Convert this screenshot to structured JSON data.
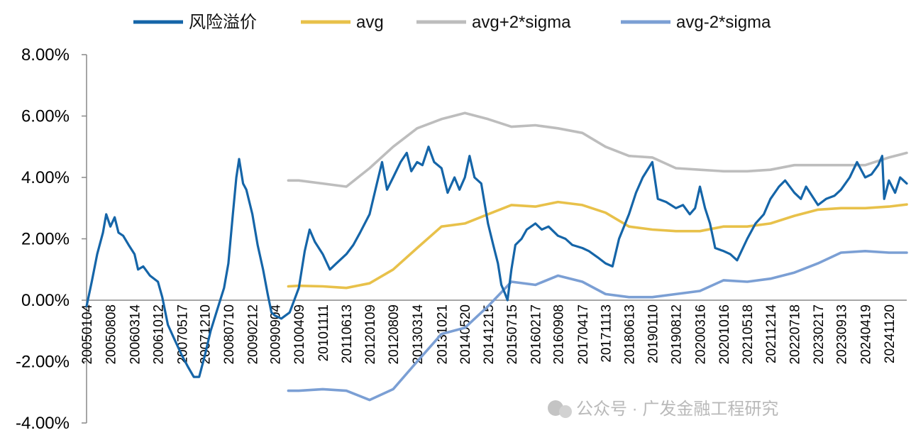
{
  "chart_data": {
    "type": "line",
    "legend_position": "top",
    "grid": false,
    "ylim": [
      -0.04,
      0.08
    ],
    "y_tick_values": [
      -0.04,
      -0.02,
      0.0,
      0.02,
      0.04,
      0.06,
      0.08
    ],
    "y_tick_labels": [
      "-4.00%",
      "-2.00%",
      "0.00%",
      "2.00%",
      "4.00%",
      "6.00%",
      "8.00%"
    ],
    "x_start": "2005-01-04",
    "x_end": "2025-04-30",
    "x_ticks": [
      {
        "date": "2005-01-04",
        "label": "20050104"
      },
      {
        "date": "2005-08-08",
        "label": "20050808"
      },
      {
        "date": "2006-03-14",
        "label": "20060314"
      },
      {
        "date": "2006-10-12",
        "label": "20061012"
      },
      {
        "date": "2007-05-17",
        "label": "20070517"
      },
      {
        "date": "2007-12-10",
        "label": "20071210"
      },
      {
        "date": "2008-07-10",
        "label": "20080710"
      },
      {
        "date": "2009-02-12",
        "label": "20090212"
      },
      {
        "date": "2009-09-04",
        "label": "20090904"
      },
      {
        "date": "2010-04-09",
        "label": "20100409"
      },
      {
        "date": "2010-11-11",
        "label": "20101111"
      },
      {
        "date": "2011-06-13",
        "label": "20110613"
      },
      {
        "date": "2012-01-09",
        "label": "20120109"
      },
      {
        "date": "2012-08-09",
        "label": "20120809"
      },
      {
        "date": "2013-03-14",
        "label": "20130314"
      },
      {
        "date": "2013-10-21",
        "label": "20131021"
      },
      {
        "date": "2014-05-20",
        "label": "20140520"
      },
      {
        "date": "2014-12-15",
        "label": "20141215"
      },
      {
        "date": "2015-07-15",
        "label": "20150715"
      },
      {
        "date": "2016-02-17",
        "label": "20160217"
      },
      {
        "date": "2016-09-08",
        "label": "20160908"
      },
      {
        "date": "2017-04-17",
        "label": "20170417"
      },
      {
        "date": "2017-11-13",
        "label": "20171113"
      },
      {
        "date": "2018-06-13",
        "label": "20180613"
      },
      {
        "date": "2019-01-10",
        "label": "20190110"
      },
      {
        "date": "2019-08-12",
        "label": "20190812"
      },
      {
        "date": "2020-03-16",
        "label": "20200316"
      },
      {
        "date": "2020-10-16",
        "label": "20201016"
      },
      {
        "date": "2021-05-18",
        "label": "20210518"
      },
      {
        "date": "2021-12-14",
        "label": "20211214"
      },
      {
        "date": "2022-07-18",
        "label": "20220718"
      },
      {
        "date": "2023-02-17",
        "label": "20230217"
      },
      {
        "date": "2023-09-13",
        "label": "20230913"
      },
      {
        "date": "2024-04-19",
        "label": "20240419"
      },
      {
        "date": "2024-11-20",
        "label": "20241120"
      }
    ],
    "series": [
      {
        "name": "风险溢价",
        "color": "#1565A8",
        "points": [
          [
            "2005-01-04",
            -0.002
          ],
          [
            "2005-02-20",
            0.006
          ],
          [
            "2005-04-10",
            0.015
          ],
          [
            "2005-06-01",
            0.022
          ],
          [
            "2005-07-01",
            0.028
          ],
          [
            "2005-08-08",
            0.024
          ],
          [
            "2005-09-15",
            0.027
          ],
          [
            "2005-10-20",
            0.022
          ],
          [
            "2005-12-01",
            0.021
          ],
          [
            "2006-01-20",
            0.018
          ],
          [
            "2006-03-14",
            0.015
          ],
          [
            "2006-04-15",
            0.01
          ],
          [
            "2006-06-01",
            0.011
          ],
          [
            "2006-08-01",
            0.008
          ],
          [
            "2006-10-12",
            0.006
          ],
          [
            "2006-11-20",
            0.001
          ],
          [
            "2007-01-10",
            -0.008
          ],
          [
            "2007-03-01",
            -0.012
          ],
          [
            "2007-05-17",
            -0.018
          ],
          [
            "2007-07-15",
            -0.022
          ],
          [
            "2007-09-01",
            -0.025
          ],
          [
            "2007-10-20",
            -0.025
          ],
          [
            "2007-12-10",
            -0.018
          ],
          [
            "2008-02-01",
            -0.01
          ],
          [
            "2008-04-01",
            -0.003
          ],
          [
            "2008-06-01",
            0.004
          ],
          [
            "2008-07-10",
            0.012
          ],
          [
            "2008-08-20",
            0.028
          ],
          [
            "2008-09-20",
            0.04
          ],
          [
            "2008-10-15",
            0.046
          ],
          [
            "2008-11-20",
            0.038
          ],
          [
            "2008-12-20",
            0.036
          ],
          [
            "2009-02-12",
            0.028
          ],
          [
            "2009-04-01",
            0.018
          ],
          [
            "2009-05-20",
            0.01
          ],
          [
            "2009-07-01",
            0.002
          ],
          [
            "2009-08-04",
            -0.004
          ],
          [
            "2009-09-04",
            -0.005
          ],
          [
            "2009-11-01",
            -0.006
          ],
          [
            "2010-01-15",
            -0.004
          ],
          [
            "2010-04-09",
            0.004
          ],
          [
            "2010-06-01",
            0.016
          ],
          [
            "2010-07-15",
            0.023
          ],
          [
            "2010-09-01",
            0.019
          ],
          [
            "2010-11-11",
            0.015
          ],
          [
            "2011-01-15",
            0.01
          ],
          [
            "2011-03-15",
            0.012
          ],
          [
            "2011-06-13",
            0.015
          ],
          [
            "2011-08-15",
            0.018
          ],
          [
            "2011-10-15",
            0.022
          ],
          [
            "2012-01-09",
            0.028
          ],
          [
            "2012-03-15",
            0.038
          ],
          [
            "2012-05-01",
            0.045
          ],
          [
            "2012-06-15",
            0.036
          ],
          [
            "2012-08-09",
            0.04
          ],
          [
            "2012-10-15",
            0.045
          ],
          [
            "2012-12-10",
            0.048
          ],
          [
            "2013-01-20",
            0.042
          ],
          [
            "2013-03-14",
            0.045
          ],
          [
            "2013-05-01",
            0.044
          ],
          [
            "2013-06-25",
            0.05
          ],
          [
            "2013-08-15",
            0.045
          ],
          [
            "2013-10-21",
            0.043
          ],
          [
            "2013-12-15",
            0.035
          ],
          [
            "2014-02-15",
            0.04
          ],
          [
            "2014-04-01",
            0.036
          ],
          [
            "2014-05-20",
            0.04
          ],
          [
            "2014-07-01",
            0.047
          ],
          [
            "2014-08-15",
            0.04
          ],
          [
            "2014-10-15",
            0.038
          ],
          [
            "2014-12-15",
            0.025
          ],
          [
            "2015-02-01",
            0.018
          ],
          [
            "2015-03-15",
            0.012
          ],
          [
            "2015-04-15",
            0.005
          ],
          [
            "2015-05-20",
            0.002
          ],
          [
            "2015-06-10",
            0.0
          ],
          [
            "2015-07-15",
            0.01
          ],
          [
            "2015-08-20",
            0.018
          ],
          [
            "2015-10-15",
            0.02
          ],
          [
            "2015-12-01",
            0.023
          ],
          [
            "2016-02-17",
            0.025
          ],
          [
            "2016-04-15",
            0.023
          ],
          [
            "2016-06-15",
            0.024
          ],
          [
            "2016-09-08",
            0.021
          ],
          [
            "2016-11-15",
            0.02
          ],
          [
            "2017-01-15",
            0.018
          ],
          [
            "2017-04-17",
            0.017
          ],
          [
            "2017-06-15",
            0.016
          ],
          [
            "2017-09-01",
            0.014
          ],
          [
            "2017-11-13",
            0.012
          ],
          [
            "2018-01-15",
            0.011
          ],
          [
            "2018-03-15",
            0.02
          ],
          [
            "2018-06-13",
            0.028
          ],
          [
            "2018-08-15",
            0.035
          ],
          [
            "2018-10-15",
            0.04
          ],
          [
            "2019-01-10",
            0.045
          ],
          [
            "2019-03-01",
            0.033
          ],
          [
            "2019-05-15",
            0.032
          ],
          [
            "2019-08-12",
            0.03
          ],
          [
            "2019-10-15",
            0.031
          ],
          [
            "2019-12-15",
            0.028
          ],
          [
            "2020-02-01",
            0.03
          ],
          [
            "2020-03-16",
            0.037
          ],
          [
            "2020-05-01",
            0.03
          ],
          [
            "2020-06-15",
            0.025
          ],
          [
            "2020-08-01",
            0.017
          ],
          [
            "2020-10-16",
            0.016
          ],
          [
            "2020-12-15",
            0.015
          ],
          [
            "2021-02-15",
            0.013
          ],
          [
            "2021-05-18",
            0.02
          ],
          [
            "2021-08-01",
            0.025
          ],
          [
            "2021-10-15",
            0.028
          ],
          [
            "2021-12-14",
            0.033
          ],
          [
            "2022-03-01",
            0.037
          ],
          [
            "2022-04-26",
            0.039
          ],
          [
            "2022-07-18",
            0.035
          ],
          [
            "2022-09-15",
            0.033
          ],
          [
            "2022-11-01",
            0.037
          ],
          [
            "2023-02-17",
            0.031
          ],
          [
            "2023-05-01",
            0.033
          ],
          [
            "2023-07-15",
            0.034
          ],
          [
            "2023-09-13",
            0.036
          ],
          [
            "2023-12-01",
            0.04
          ],
          [
            "2024-02-05",
            0.045
          ],
          [
            "2024-04-19",
            0.04
          ],
          [
            "2024-06-15",
            0.041
          ],
          [
            "2024-08-15",
            0.044
          ],
          [
            "2024-09-20",
            0.047
          ],
          [
            "2024-10-08",
            0.033
          ],
          [
            "2024-11-20",
            0.039
          ],
          [
            "2025-01-15",
            0.035
          ],
          [
            "2025-03-01",
            0.04
          ],
          [
            "2025-04-30",
            0.038
          ]
        ]
      },
      {
        "name": "avg",
        "color": "#E8C14A",
        "points": [
          [
            "2010-01-04",
            0.0045
          ],
          [
            "2010-04-09",
            0.0047
          ],
          [
            "2010-11-11",
            0.0045
          ],
          [
            "2011-06-13",
            0.004
          ],
          [
            "2012-01-09",
            0.0055
          ],
          [
            "2012-08-09",
            0.01
          ],
          [
            "2013-03-14",
            0.017
          ],
          [
            "2013-10-21",
            0.024
          ],
          [
            "2014-05-20",
            0.025
          ],
          [
            "2014-12-15",
            0.028
          ],
          [
            "2015-07-15",
            0.031
          ],
          [
            "2016-02-17",
            0.0305
          ],
          [
            "2016-09-08",
            0.032
          ],
          [
            "2017-04-17",
            0.031
          ],
          [
            "2017-11-13",
            0.0285
          ],
          [
            "2018-06-13",
            0.024
          ],
          [
            "2019-01-10",
            0.023
          ],
          [
            "2019-08-12",
            0.0225
          ],
          [
            "2020-03-16",
            0.0225
          ],
          [
            "2020-10-16",
            0.024
          ],
          [
            "2021-05-18",
            0.024
          ],
          [
            "2021-12-14",
            0.025
          ],
          [
            "2022-07-18",
            0.0275
          ],
          [
            "2023-02-17",
            0.0295
          ],
          [
            "2023-09-13",
            0.03
          ],
          [
            "2024-04-19",
            0.03
          ],
          [
            "2024-11-20",
            0.0305
          ],
          [
            "2025-04-30",
            0.0312
          ]
        ]
      },
      {
        "name": "avg+2*sigma",
        "color": "#BDBDBD",
        "points": [
          [
            "2010-01-04",
            0.039
          ],
          [
            "2010-04-09",
            0.039
          ],
          [
            "2010-11-11",
            0.038
          ],
          [
            "2011-06-13",
            0.037
          ],
          [
            "2012-01-09",
            0.043
          ],
          [
            "2012-08-09",
            0.05
          ],
          [
            "2013-03-14",
            0.056
          ],
          [
            "2013-10-21",
            0.059
          ],
          [
            "2014-05-20",
            0.061
          ],
          [
            "2014-12-15",
            0.059
          ],
          [
            "2015-07-15",
            0.0565
          ],
          [
            "2016-02-17",
            0.057
          ],
          [
            "2016-09-08",
            0.056
          ],
          [
            "2017-04-17",
            0.0545
          ],
          [
            "2017-11-13",
            0.05
          ],
          [
            "2018-06-13",
            0.047
          ],
          [
            "2019-01-10",
            0.0465
          ],
          [
            "2019-08-12",
            0.043
          ],
          [
            "2020-03-16",
            0.0425
          ],
          [
            "2020-10-16",
            0.042
          ],
          [
            "2021-05-18",
            0.042
          ],
          [
            "2021-12-14",
            0.0425
          ],
          [
            "2022-07-18",
            0.044
          ],
          [
            "2023-02-17",
            0.044
          ],
          [
            "2023-09-13",
            0.044
          ],
          [
            "2024-04-19",
            0.044
          ],
          [
            "2024-11-20",
            0.0465
          ],
          [
            "2025-04-30",
            0.048
          ]
        ]
      },
      {
        "name": "avg-2*sigma",
        "color": "#7B9FD4",
        "points": [
          [
            "2010-01-04",
            -0.0295
          ],
          [
            "2010-04-09",
            -0.0295
          ],
          [
            "2010-11-11",
            -0.029
          ],
          [
            "2011-06-13",
            -0.0295
          ],
          [
            "2012-01-09",
            -0.0325
          ],
          [
            "2012-08-09",
            -0.029
          ],
          [
            "2013-03-14",
            -0.02
          ],
          [
            "2013-10-21",
            -0.011
          ],
          [
            "2014-05-20",
            -0.009
          ],
          [
            "2014-12-15",
            -0.002
          ],
          [
            "2015-07-15",
            0.006
          ],
          [
            "2016-02-17",
            0.005
          ],
          [
            "2016-09-08",
            0.008
          ],
          [
            "2017-04-17",
            0.006
          ],
          [
            "2017-11-13",
            0.002
          ],
          [
            "2018-06-13",
            0.001
          ],
          [
            "2019-01-10",
            0.001
          ],
          [
            "2019-08-12",
            0.002
          ],
          [
            "2020-03-16",
            0.003
          ],
          [
            "2020-10-16",
            0.0065
          ],
          [
            "2021-05-18",
            0.006
          ],
          [
            "2021-12-14",
            0.007
          ],
          [
            "2022-07-18",
            0.009
          ],
          [
            "2023-02-17",
            0.012
          ],
          [
            "2023-09-13",
            0.0155
          ],
          [
            "2024-04-19",
            0.016
          ],
          [
            "2024-11-20",
            0.0155
          ],
          [
            "2025-04-30",
            0.0155
          ]
        ]
      }
    ]
  },
  "watermark": {
    "icon": "wechat-icon",
    "text": "公众号 · 广发金融工程研究"
  }
}
